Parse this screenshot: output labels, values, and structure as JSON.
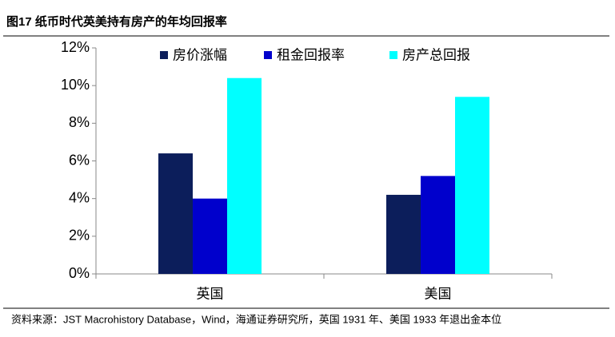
{
  "chart_data": {
    "type": "bar",
    "title": "图17 纸币时代英美持有房产的年均回报率",
    "source": "资料来源：JST Macrohistory Database，Wind，海通证券研究所，英国 1931 年、美国 1933 年退出金本位",
    "categories": [
      "英国",
      "美国"
    ],
    "series": [
      {
        "name": "房价涨幅",
        "color": "#0c1e5b",
        "values": [
          6.4,
          4.2
        ]
      },
      {
        "name": "租金回报率",
        "color": "#0000cc",
        "values": [
          4.0,
          5.2
        ]
      },
      {
        "name": "房产总回报",
        "color": "#00ffff",
        "values": [
          10.4,
          9.4
        ]
      }
    ],
    "ylim": [
      0,
      12
    ],
    "yticks": [
      {
        "value": 0,
        "label": "0%"
      },
      {
        "value": 2,
        "label": "2%"
      },
      {
        "value": 4,
        "label": "4%"
      },
      {
        "value": 6,
        "label": "6%"
      },
      {
        "value": 8,
        "label": "8%"
      },
      {
        "value": 10,
        "label": "10%"
      },
      {
        "value": 12,
        "label": "12%"
      }
    ],
    "legend": "top"
  }
}
